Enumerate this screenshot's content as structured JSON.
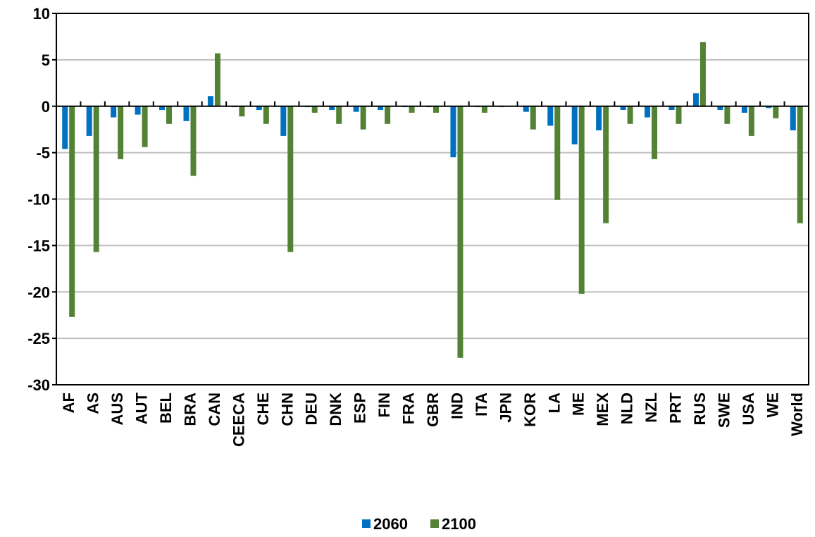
{
  "chart_data": {
    "type": "bar",
    "categories": [
      "AF",
      "AS",
      "AUS",
      "AUT",
      "BEL",
      "BRA",
      "CAN",
      "CEECA",
      "CHE",
      "CHN",
      "DEU",
      "DNK",
      "ESP",
      "FIN",
      "FRA",
      "GBR",
      "IND",
      "ITA",
      "JPN",
      "KOR",
      "LA",
      "ME",
      "MEX",
      "NLD",
      "NZL",
      "PRT",
      "RUS",
      "SWE",
      "USA",
      "WE",
      "World"
    ],
    "series": [
      {
        "name": "2060",
        "color": "#0070C0",
        "values": [
          -4.6,
          -3.2,
          -1.2,
          -0.9,
          -0.4,
          -1.6,
          1.1,
          -0.1,
          -0.4,
          -3.2,
          -0.1,
          -0.4,
          -0.6,
          -0.4,
          -0.1,
          -0.1,
          -5.5,
          -0.1,
          -0.1,
          -0.6,
          -2.1,
          -4.1,
          -2.6,
          -0.4,
          -1.2,
          -0.4,
          1.4,
          -0.4,
          -0.7,
          -0.2,
          -2.6
        ]
      },
      {
        "name": "2100",
        "color": "#548235",
        "values": [
          -22.7,
          -15.7,
          -5.7,
          -4.4,
          -1.9,
          -7.5,
          5.7,
          -1.1,
          -1.9,
          -15.7,
          -0.7,
          -1.9,
          -2.5,
          -1.9,
          -0.7,
          -0.7,
          -27.1,
          -0.7,
          0,
          -2.5,
          -10.1,
          -20.2,
          -12.6,
          -1.9,
          -5.7,
          -1.9,
          6.9,
          -1.9,
          -3.2,
          -1.3,
          -12.6
        ]
      }
    ],
    "yticks": [
      "10",
      "5",
      "0",
      "-5",
      "-10",
      "-15",
      "-20",
      "-25",
      "-30"
    ],
    "ylim": [
      -30,
      10
    ],
    "grid": true,
    "legend": "bottom-center",
    "title": "",
    "xlabel": "",
    "ylabel": ""
  }
}
